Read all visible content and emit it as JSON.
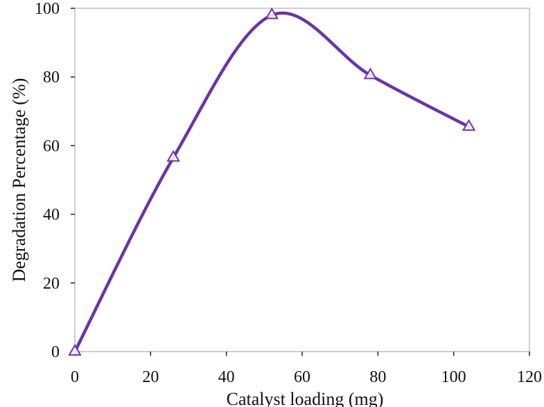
{
  "chart_data": {
    "type": "line",
    "title": "",
    "xlabel": "Catalyst loading (mg)",
    "ylabel": "Degradation Percentage (%)",
    "xlim": [
      0,
      120
    ],
    "ylim": [
      0,
      100
    ],
    "x_ticks": [
      0,
      20,
      40,
      60,
      80,
      100,
      120
    ],
    "y_ticks": [
      0,
      20,
      40,
      60,
      80,
      100
    ],
    "x_tick_labels": [
      "0",
      "20",
      "40",
      "60",
      "80",
      "100",
      "120"
    ],
    "y_tick_labels": [
      "0",
      "20",
      "40",
      "60",
      "80",
      "100"
    ],
    "grid": false,
    "legend": false,
    "series": [
      {
        "marker": "open-triangle",
        "color": "#6a33a8",
        "smooth": true,
        "x": [
          0,
          26,
          52,
          78,
          104
        ],
        "y": [
          0,
          56.5,
          98,
          80.5,
          65.5
        ]
      }
    ]
  }
}
